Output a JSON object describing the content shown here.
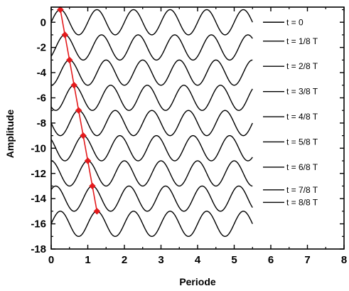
{
  "chart_data": {
    "type": "line",
    "xlabel": "Periode",
    "ylabel": "Amplitude",
    "xlim": [
      0,
      8
    ],
    "ylim": [
      -18,
      1.2
    ],
    "x_ticks": [
      0,
      1,
      2,
      3,
      4,
      5,
      6,
      7,
      8
    ],
    "y_ticks": [
      0,
      -2,
      -4,
      -6,
      -8,
      -10,
      -12,
      -14,
      -16,
      -18
    ],
    "x_tick_labels": [
      "0",
      "1",
      "2",
      "3",
      "4",
      "5",
      "6",
      "7",
      "8"
    ],
    "y_tick_labels": [
      "0",
      "-2",
      "-4",
      "-6",
      "-8",
      "-10",
      "-12",
      "-14",
      "-16",
      "-18"
    ],
    "grid": false,
    "legend_position": "right",
    "wave": {
      "x_start": 0,
      "x_end": 5.5,
      "period": 1,
      "amplitude": 1
    },
    "series": [
      {
        "name": "t = 0",
        "offset": 0,
        "phase_fraction": 0
      },
      {
        "name": "t = 1/8 T",
        "offset": -2,
        "phase_fraction": 0.125
      },
      {
        "name": "t = 2/8 T",
        "offset": -4,
        "phase_fraction": 0.25
      },
      {
        "name": "t = 3/8 T",
        "offset": -6,
        "phase_fraction": 0.375
      },
      {
        "name": "t = 4/8 T",
        "offset": -8,
        "phase_fraction": 0.5
      },
      {
        "name": "t = 5/8 T",
        "offset": -10,
        "phase_fraction": 0.625
      },
      {
        "name": "t = 6/8 T",
        "offset": -12,
        "phase_fraction": 0.75
      },
      {
        "name": "t = 7/8 T",
        "offset": -14,
        "phase_fraction": 0.875
      },
      {
        "name": "t = 8/8 T",
        "offset": -16,
        "phase_fraction": 1
      }
    ],
    "crest_track": {
      "color": "#e31a1c",
      "points": [
        {
          "x": 0.25,
          "y": 1
        },
        {
          "x": 0.375,
          "y": -1
        },
        {
          "x": 0.5,
          "y": -3
        },
        {
          "x": 0.625,
          "y": -5
        },
        {
          "x": 0.75,
          "y": -7
        },
        {
          "x": 0.875,
          "y": -9
        },
        {
          "x": 1.0,
          "y": -11
        },
        {
          "x": 1.125,
          "y": -13
        },
        {
          "x": 1.25,
          "y": -15
        }
      ]
    },
    "legend_rows_y": [
      0,
      -1.5,
      -3.5,
      -5.5,
      -7.5,
      -9.5,
      -11.5,
      -13.3,
      -14.3
    ]
  }
}
